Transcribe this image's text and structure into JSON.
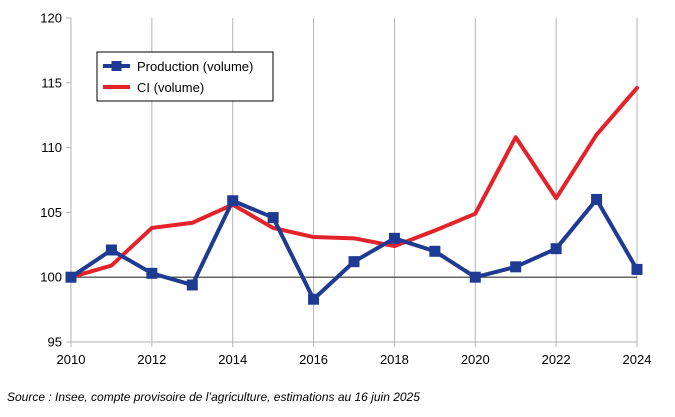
{
  "chart_data": {
    "type": "line",
    "x": [
      2010,
      2011,
      2012,
      2013,
      2014,
      2015,
      2016,
      2017,
      2018,
      2019,
      2020,
      2021,
      2022,
      2023,
      2024
    ],
    "series": [
      {
        "name": "Production (volume)",
        "color": "#1f3a93",
        "marker": "square",
        "values": [
          100.0,
          102.1,
          100.3,
          99.4,
          105.9,
          104.6,
          98.3,
          101.2,
          103.0,
          102.0,
          100.0,
          100.8,
          102.2,
          106.0,
          100.6
        ]
      },
      {
        "name": "CI (volume)",
        "color": "#e3222a",
        "marker": "none",
        "values": [
          100.0,
          100.9,
          103.8,
          104.2,
          105.6,
          103.8,
          103.1,
          103.0,
          102.4,
          103.6,
          104.9,
          110.8,
          106.1,
          111.0,
          114.6
        ]
      }
    ],
    "xlim": [
      2010,
      2024
    ],
    "ylim": [
      95,
      120
    ],
    "xticks": [
      "2010",
      "2012",
      "2014",
      "2016",
      "2018",
      "2020",
      "2022",
      "2024"
    ],
    "yticks": [
      "95",
      "100",
      "105",
      "110",
      "115",
      "120"
    ],
    "reference_line": 100,
    "grid": "vertical",
    "legend_position": "top-left",
    "title": "",
    "xlabel": "",
    "ylabel": ""
  },
  "source": "Source : Insee, compte provisoire de l’agriculture, estimations au 16 juin 2025"
}
